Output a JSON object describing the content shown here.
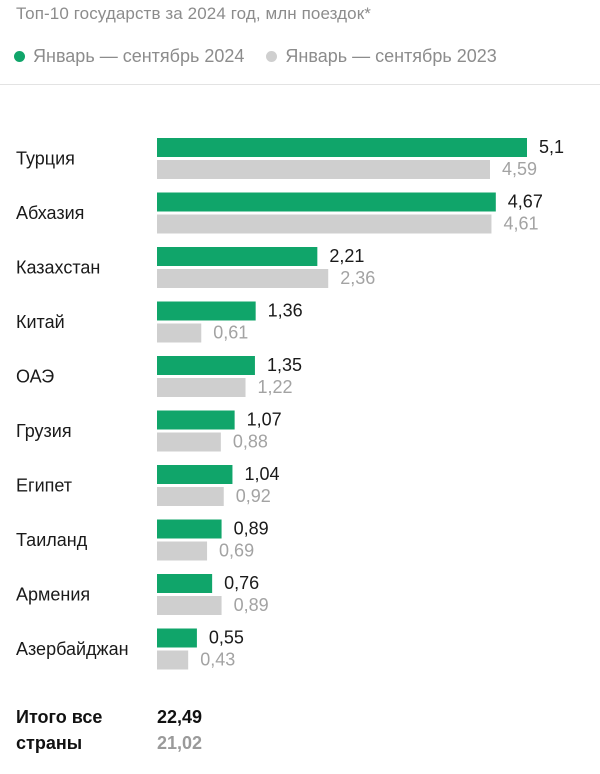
{
  "header": {
    "title": "Топ-10 государств за 2024 год, млн поездок*",
    "legend": [
      {
        "label": "Январь — сентябрь 2024",
        "color": "#10a56a"
      },
      {
        "label": "Январь — сентябрь 2023",
        "color": "#cfcfcf"
      }
    ]
  },
  "chart_data": {
    "type": "bar",
    "orientation": "horizontal",
    "title": "Топ-10 государств за 2024 год, млн поездок*",
    "categories": [
      "Турция",
      "Абхазия",
      "Казахстан",
      "Китай",
      "ОАЭ",
      "Грузия",
      "Египет",
      "Таиланд",
      "Армения",
      "Азербайджан"
    ],
    "series": [
      {
        "name": "Январь — сентябрь 2024",
        "color": "#10a56a",
        "values": [
          5.1,
          4.67,
          2.21,
          1.36,
          1.35,
          1.07,
          1.04,
          0.89,
          0.76,
          0.55
        ],
        "labels": [
          "5,1",
          "4,67",
          "2,21",
          "1,36",
          "1,35",
          "1,07",
          "1,04",
          "0,89",
          "0,76",
          "0,55"
        ]
      },
      {
        "name": "Январь — сентябрь 2023",
        "color": "#cfcfcf",
        "values": [
          4.59,
          4.61,
          2.36,
          0.61,
          1.22,
          0.88,
          0.92,
          0.69,
          0.89,
          0.43
        ],
        "labels": [
          "4,59",
          "4,61",
          "2,36",
          "0,61",
          "1,22",
          "0,88",
          "0,92",
          "0,69",
          "0,89",
          "0,43"
        ]
      }
    ],
    "xlim": [
      0,
      5.1
    ],
    "grid": false,
    "legend_position": "top"
  },
  "total": {
    "label": "Итого все страны",
    "value_2024": "22,49",
    "value_2023": "21,02"
  }
}
